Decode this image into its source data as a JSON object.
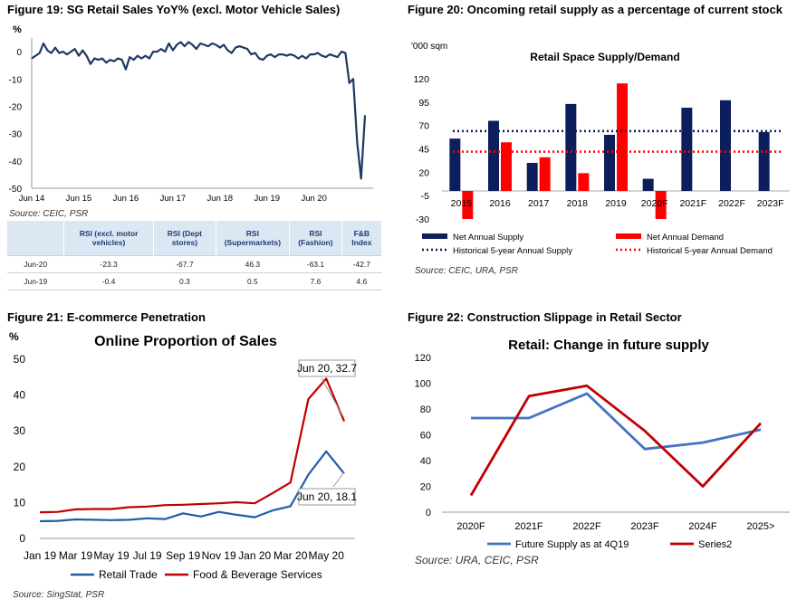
{
  "fig19": {
    "title": "Figure 19: SG Retail Sales YoY% (excl. Motor Vehicle Sales)",
    "unit": "%",
    "source": "Source: CEIC, PSR",
    "table": {
      "headers": [
        "",
        "RSI (excl. motor vehicles)",
        "RSI (Dept stores)",
        "RSI (Supermarkets)",
        "RSI (Fashion)",
        "F&B Index"
      ],
      "rows": [
        [
          "Jun-20",
          "-23.3",
          "-67.7",
          "46.3",
          "-63.1",
          "-42.7"
        ],
        [
          "Jun-19",
          "-0.4",
          "0.3",
          "0.5",
          "7.6",
          "4.6"
        ]
      ]
    }
  },
  "fig20": {
    "title": "Figure 20: Oncoming retail supply as a percentage of current stock",
    "unit": "'000 sqm",
    "source": "Source: CEIC, URA, PSR"
  },
  "fig21": {
    "title": "Figure 21: E-commerce Penetration",
    "unit": "%",
    "source": "Source: SingStat, PSR",
    "callout_top": "Jun 20, 32.7",
    "callout_bottom": "Jun 20, 18.1"
  },
  "fig22": {
    "title": "Figure 22: Construction Slippage in Retail Sector",
    "source": "Source: URA, CEIC, PSR"
  },
  "chart_data": [
    {
      "type": "line",
      "ylabel": "%",
      "ylim": [
        -50,
        5
      ],
      "yticks": [
        0,
        -10,
        -20,
        -30,
        -40,
        -50
      ],
      "xticks": [
        "Jun 14",
        "Jun 15",
        "Jun 16",
        "Jun 17",
        "Jun 18",
        "Jun 19",
        "Jun 20"
      ],
      "x_start": "Jun 14",
      "color": "#1f3864",
      "series": [
        {
          "values": [
            -2.5,
            -1.5,
            -0.5,
            3,
            0.5,
            -0.5,
            1.5,
            -0.5,
            0,
            -1,
            0,
            1,
            -1.5,
            0.5,
            -1.5,
            -4.5,
            -2.5,
            -3,
            -2.5,
            -4,
            -3,
            -3.5,
            -2.5,
            -3,
            -6.5,
            -2,
            -3,
            -1.5,
            -2.5,
            -1.5,
            -2.5,
            0,
            0,
            1,
            0,
            3,
            0.5,
            2.5,
            3.5,
            2,
            3.5,
            2.5,
            1,
            3,
            2.5,
            2,
            3,
            2.5,
            1.5,
            2.5,
            0.5,
            -0.5,
            1.5,
            2,
            1.5,
            1,
            -1,
            -0.5,
            -2.5,
            -3,
            -1.5,
            -1,
            -2,
            -1,
            -1,
            -1.5,
            -1,
            -1.5,
            -2.5,
            -1.5,
            -2.5,
            -1,
            -1,
            -0.5,
            -1.5,
            -2,
            -1,
            -1.5,
            -2,
            0,
            -0.5,
            -11.5,
            -10,
            -33,
            -46.5,
            -23.3
          ]
        }
      ],
      "table_title": "",
      "note": ""
    },
    {
      "type": "bar",
      "title": "Retail Space Supply/Demand",
      "categories": [
        "2015",
        "2016",
        "2017",
        "2018",
        "2019",
        "2020F",
        "2021F",
        "2022F",
        "2023F"
      ],
      "ylim": [
        -30,
        120
      ],
      "yticks": [
        120,
        95,
        70,
        45,
        20,
        -5,
        -30
      ],
      "series": [
        {
          "name": "Net Annual Supply",
          "color": "#0c1f5c",
          "values": [
            56,
            75,
            30,
            93,
            60,
            13,
            89,
            97,
            63
          ]
        },
        {
          "name": "Net Annual Demand",
          "color": "#ff0000",
          "values": [
            -30,
            52,
            36,
            19,
            115,
            -30,
            null,
            null,
            null
          ]
        }
      ],
      "reference_lines": [
        {
          "name": "Historical 5-year Annual Supply",
          "color": "#0c1f5c",
          "value": 64
        },
        {
          "name": "Historical 5-year Annual Demand",
          "color": "#ff0000",
          "value": 42
        }
      ]
    },
    {
      "type": "line",
      "title": "Online Proportion of Sales",
      "ylabel": "%",
      "ylim": [
        0,
        50
      ],
      "yticks": [
        0,
        10,
        20,
        30,
        40,
        50
      ],
      "categories": [
        "Jan 19",
        "Feb 19",
        "Mar 19",
        "Apr 19",
        "May 19",
        "Jun 19",
        "Jul 19",
        "Aug 19",
        "Sep 19",
        "Oct 19",
        "Nov 19",
        "Dec 19",
        "Jan 20",
        "Feb 20",
        "Mar 20",
        "Apr 20",
        "May 20",
        "Jun 20"
      ],
      "xtick_labels": [
        "Jan 19",
        "Mar 19",
        "May 19",
        "Jul 19",
        "Sep 19",
        "Nov 19",
        "Jan 20",
        "Mar 20",
        "May 20"
      ],
      "series": [
        {
          "name": "Retail Trade",
          "color": "#1f5ea8",
          "values": [
            4.8,
            4.9,
            5.3,
            5.2,
            5.1,
            5.2,
            5.6,
            5.4,
            7.0,
            6.1,
            7.4,
            6.6,
            5.9,
            7.8,
            9.0,
            17.8,
            24.3,
            18.1
          ]
        },
        {
          "name": "Food & Beverage Services",
          "color": "#c00000",
          "values": [
            7.3,
            7.4,
            8.1,
            8.2,
            8.2,
            8.7,
            8.9,
            9.3,
            9.4,
            9.6,
            9.8,
            10.1,
            9.8,
            12.6,
            15.6,
            38.9,
            44.6,
            32.7
          ]
        }
      ]
    },
    {
      "type": "line",
      "title": "Retail: Change in future supply",
      "ylim": [
        0,
        120
      ],
      "yticks": [
        0,
        20,
        40,
        60,
        80,
        100,
        120
      ],
      "categories": [
        "2020F",
        "2021F",
        "2022F",
        "2023F",
        "2024F",
        "2025>"
      ],
      "series": [
        {
          "name": "Future Supply as at 4Q19",
          "color": "#4472c4",
          "values": [
            73,
            73,
            92,
            49,
            54,
            64
          ]
        },
        {
          "name": "Series2",
          "color": "#c00000",
          "values": [
            13,
            90,
            98,
            63,
            20,
            69
          ]
        }
      ]
    }
  ]
}
